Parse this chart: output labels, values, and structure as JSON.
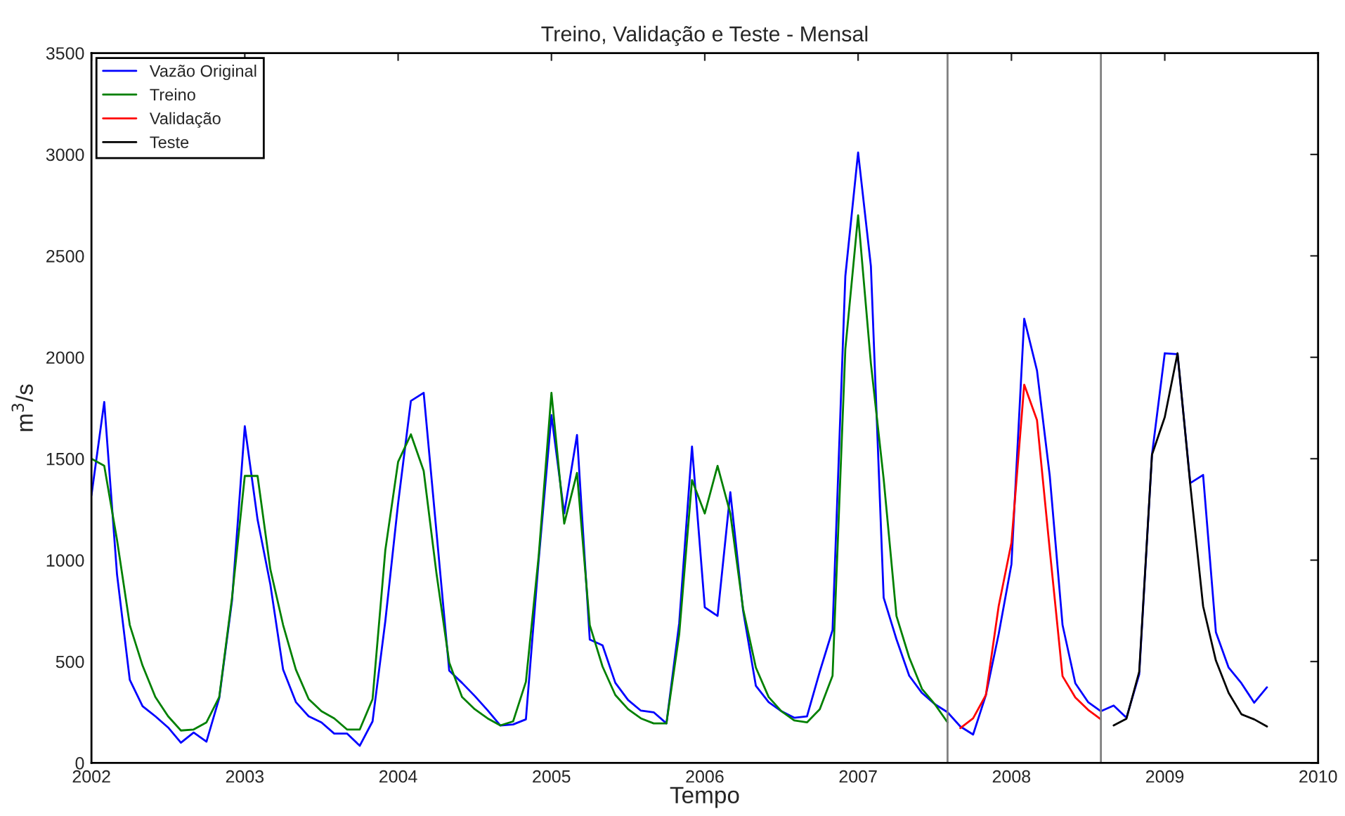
{
  "chart_data": {
    "type": "line",
    "title": "Treino, Validação e Teste - Mensal",
    "xlabel": "Tempo",
    "ylabel": "m$^{3}$/s",
    "xlim": [
      "2002",
      "2010"
    ],
    "xticks": [
      "2002",
      "2003",
      "2004",
      "2005",
      "2006",
      "2007",
      "2008",
      "2009",
      "2010"
    ],
    "ylim": [
      0,
      3500
    ],
    "yticks": [
      0,
      500,
      1000,
      1500,
      2000,
      2500,
      3000,
      3500
    ],
    "grid": false,
    "legend": "top left",
    "marker": "none",
    "line_style": "solid",
    "ref_lines": [
      {
        "axis": "x",
        "value": "2007-08",
        "color": "#808080"
      },
      {
        "axis": "x",
        "value": "2008-08",
        "color": "#808080"
      }
    ],
    "series": [
      {
        "name": "Vazão Original",
        "color": "#0000ff",
        "x": [
          "2002-01",
          "2002-02",
          "2002-03",
          "2002-04",
          "2002-05",
          "2002-06",
          "2002-07",
          "2002-08",
          "2002-09",
          "2002-10",
          "2002-11",
          "2002-12",
          "2003-01",
          "2003-02",
          "2003-03",
          "2003-04",
          "2003-05",
          "2003-06",
          "2003-07",
          "2003-08",
          "2003-09",
          "2003-10",
          "2003-11",
          "2003-12",
          "2004-01",
          "2004-02",
          "2004-03",
          "2004-04",
          "2004-05",
          "2004-06",
          "2004-07",
          "2004-08",
          "2004-09",
          "2004-10",
          "2004-11",
          "2004-12",
          "2005-01",
          "2005-02",
          "2005-03",
          "2005-04",
          "2005-05",
          "2005-06",
          "2005-07",
          "2005-08",
          "2005-09",
          "2005-10",
          "2005-11",
          "2005-12",
          "2006-01",
          "2006-02",
          "2006-03",
          "2006-04",
          "2006-05",
          "2006-06",
          "2006-07",
          "2006-08",
          "2006-09",
          "2006-10",
          "2006-11",
          "2006-12",
          "2007-01",
          "2007-02",
          "2007-03",
          "2007-04",
          "2007-05",
          "2007-06",
          "2007-07",
          "2007-08",
          "2007-09",
          "2007-10",
          "2007-11",
          "2007-12",
          "2008-01",
          "2008-02",
          "2008-03",
          "2008-04",
          "2008-05",
          "2008-06",
          "2008-07",
          "2008-08",
          "2008-09",
          "2008-10",
          "2008-11",
          "2008-12",
          "2009-01",
          "2009-02",
          "2009-03",
          "2009-04",
          "2009-05",
          "2009-06",
          "2009-07",
          "2009-08",
          "2009-09"
        ],
        "values": [
          1320,
          1780,
          930,
          410,
          280,
          230,
          175,
          100,
          150,
          105,
          320,
          800,
          1660,
          1200,
          880,
          460,
          300,
          230,
          200,
          145,
          145,
          85,
          205,
          700,
          1280,
          1785,
          1825,
          1140,
          455,
          395,
          330,
          260,
          185,
          190,
          215,
          1000,
          1715,
          1230,
          1617,
          608,
          580,
          395,
          310,
          258,
          250,
          195,
          690,
          1560,
          767,
          725,
          1335,
          750,
          380,
          300,
          255,
          223,
          230,
          450,
          655,
          2400,
          3010,
          2450,
          815,
          610,
          430,
          345,
          290,
          250,
          180,
          140,
          335,
          635,
          980,
          2190,
          1935,
          1415,
          680,
          393,
          300,
          255,
          283,
          223,
          437,
          1520,
          2020,
          2015,
          1380,
          1420,
          645,
          470,
          393,
          297,
          373
        ]
      },
      {
        "name": "Treino",
        "color": "#008000",
        "x": [
          "2002-01",
          "2002-02",
          "2002-03",
          "2002-04",
          "2002-05",
          "2002-06",
          "2002-07",
          "2002-08",
          "2002-09",
          "2002-10",
          "2002-11",
          "2002-12",
          "2003-01",
          "2003-02",
          "2003-03",
          "2003-04",
          "2003-05",
          "2003-06",
          "2003-07",
          "2003-08",
          "2003-09",
          "2003-10",
          "2003-11",
          "2003-12",
          "2004-01",
          "2004-02",
          "2004-03",
          "2004-04",
          "2004-05",
          "2004-06",
          "2004-07",
          "2004-08",
          "2004-09",
          "2004-10",
          "2004-11",
          "2004-12",
          "2005-01",
          "2005-02",
          "2005-03",
          "2005-04",
          "2005-05",
          "2005-06",
          "2005-07",
          "2005-08",
          "2005-09",
          "2005-10",
          "2005-11",
          "2005-12",
          "2006-01",
          "2006-02",
          "2006-03",
          "2006-04",
          "2006-05",
          "2006-06",
          "2006-07",
          "2006-08",
          "2006-09",
          "2006-10",
          "2006-11",
          "2006-12",
          "2007-01",
          "2007-02",
          "2007-03",
          "2007-04",
          "2007-05",
          "2007-06",
          "2007-07",
          "2007-08"
        ],
        "values": [
          1500,
          1465,
          1100,
          680,
          480,
          325,
          230,
          160,
          165,
          200,
          325,
          815,
          1415,
          1415,
          955,
          680,
          460,
          315,
          255,
          220,
          165,
          165,
          315,
          1050,
          1485,
          1620,
          1440,
          935,
          495,
          325,
          265,
          220,
          185,
          205,
          400,
          1020,
          1825,
          1180,
          1430,
          680,
          475,
          335,
          265,
          220,
          195,
          195,
          635,
          1395,
          1230,
          1465,
          1230,
          760,
          470,
          325,
          255,
          210,
          200,
          265,
          430,
          2040,
          2700,
          1970,
          1400,
          725,
          520,
          365,
          290,
          200
        ]
      },
      {
        "name": "Validação",
        "color": "#ff0000",
        "x": [
          "2007-09",
          "2007-10",
          "2007-11",
          "2007-12",
          "2008-01",
          "2008-02",
          "2008-03",
          "2008-04",
          "2008-05",
          "2008-06",
          "2008-07",
          "2008-08"
        ],
        "values": [
          172,
          220,
          335,
          773,
          1085,
          1865,
          1690,
          1050,
          428,
          323,
          262,
          215
        ]
      },
      {
        "name": "Teste",
        "color": "#000000",
        "x": [
          "2008-09",
          "2008-10",
          "2008-11",
          "2008-12",
          "2009-01",
          "2009-02",
          "2009-03",
          "2009-04",
          "2009-05",
          "2009-06",
          "2009-07",
          "2009-08",
          "2009-09"
        ],
        "values": [
          185,
          218,
          450,
          1520,
          1705,
          2020,
          1370,
          773,
          505,
          345,
          240,
          215,
          180
        ]
      }
    ]
  }
}
